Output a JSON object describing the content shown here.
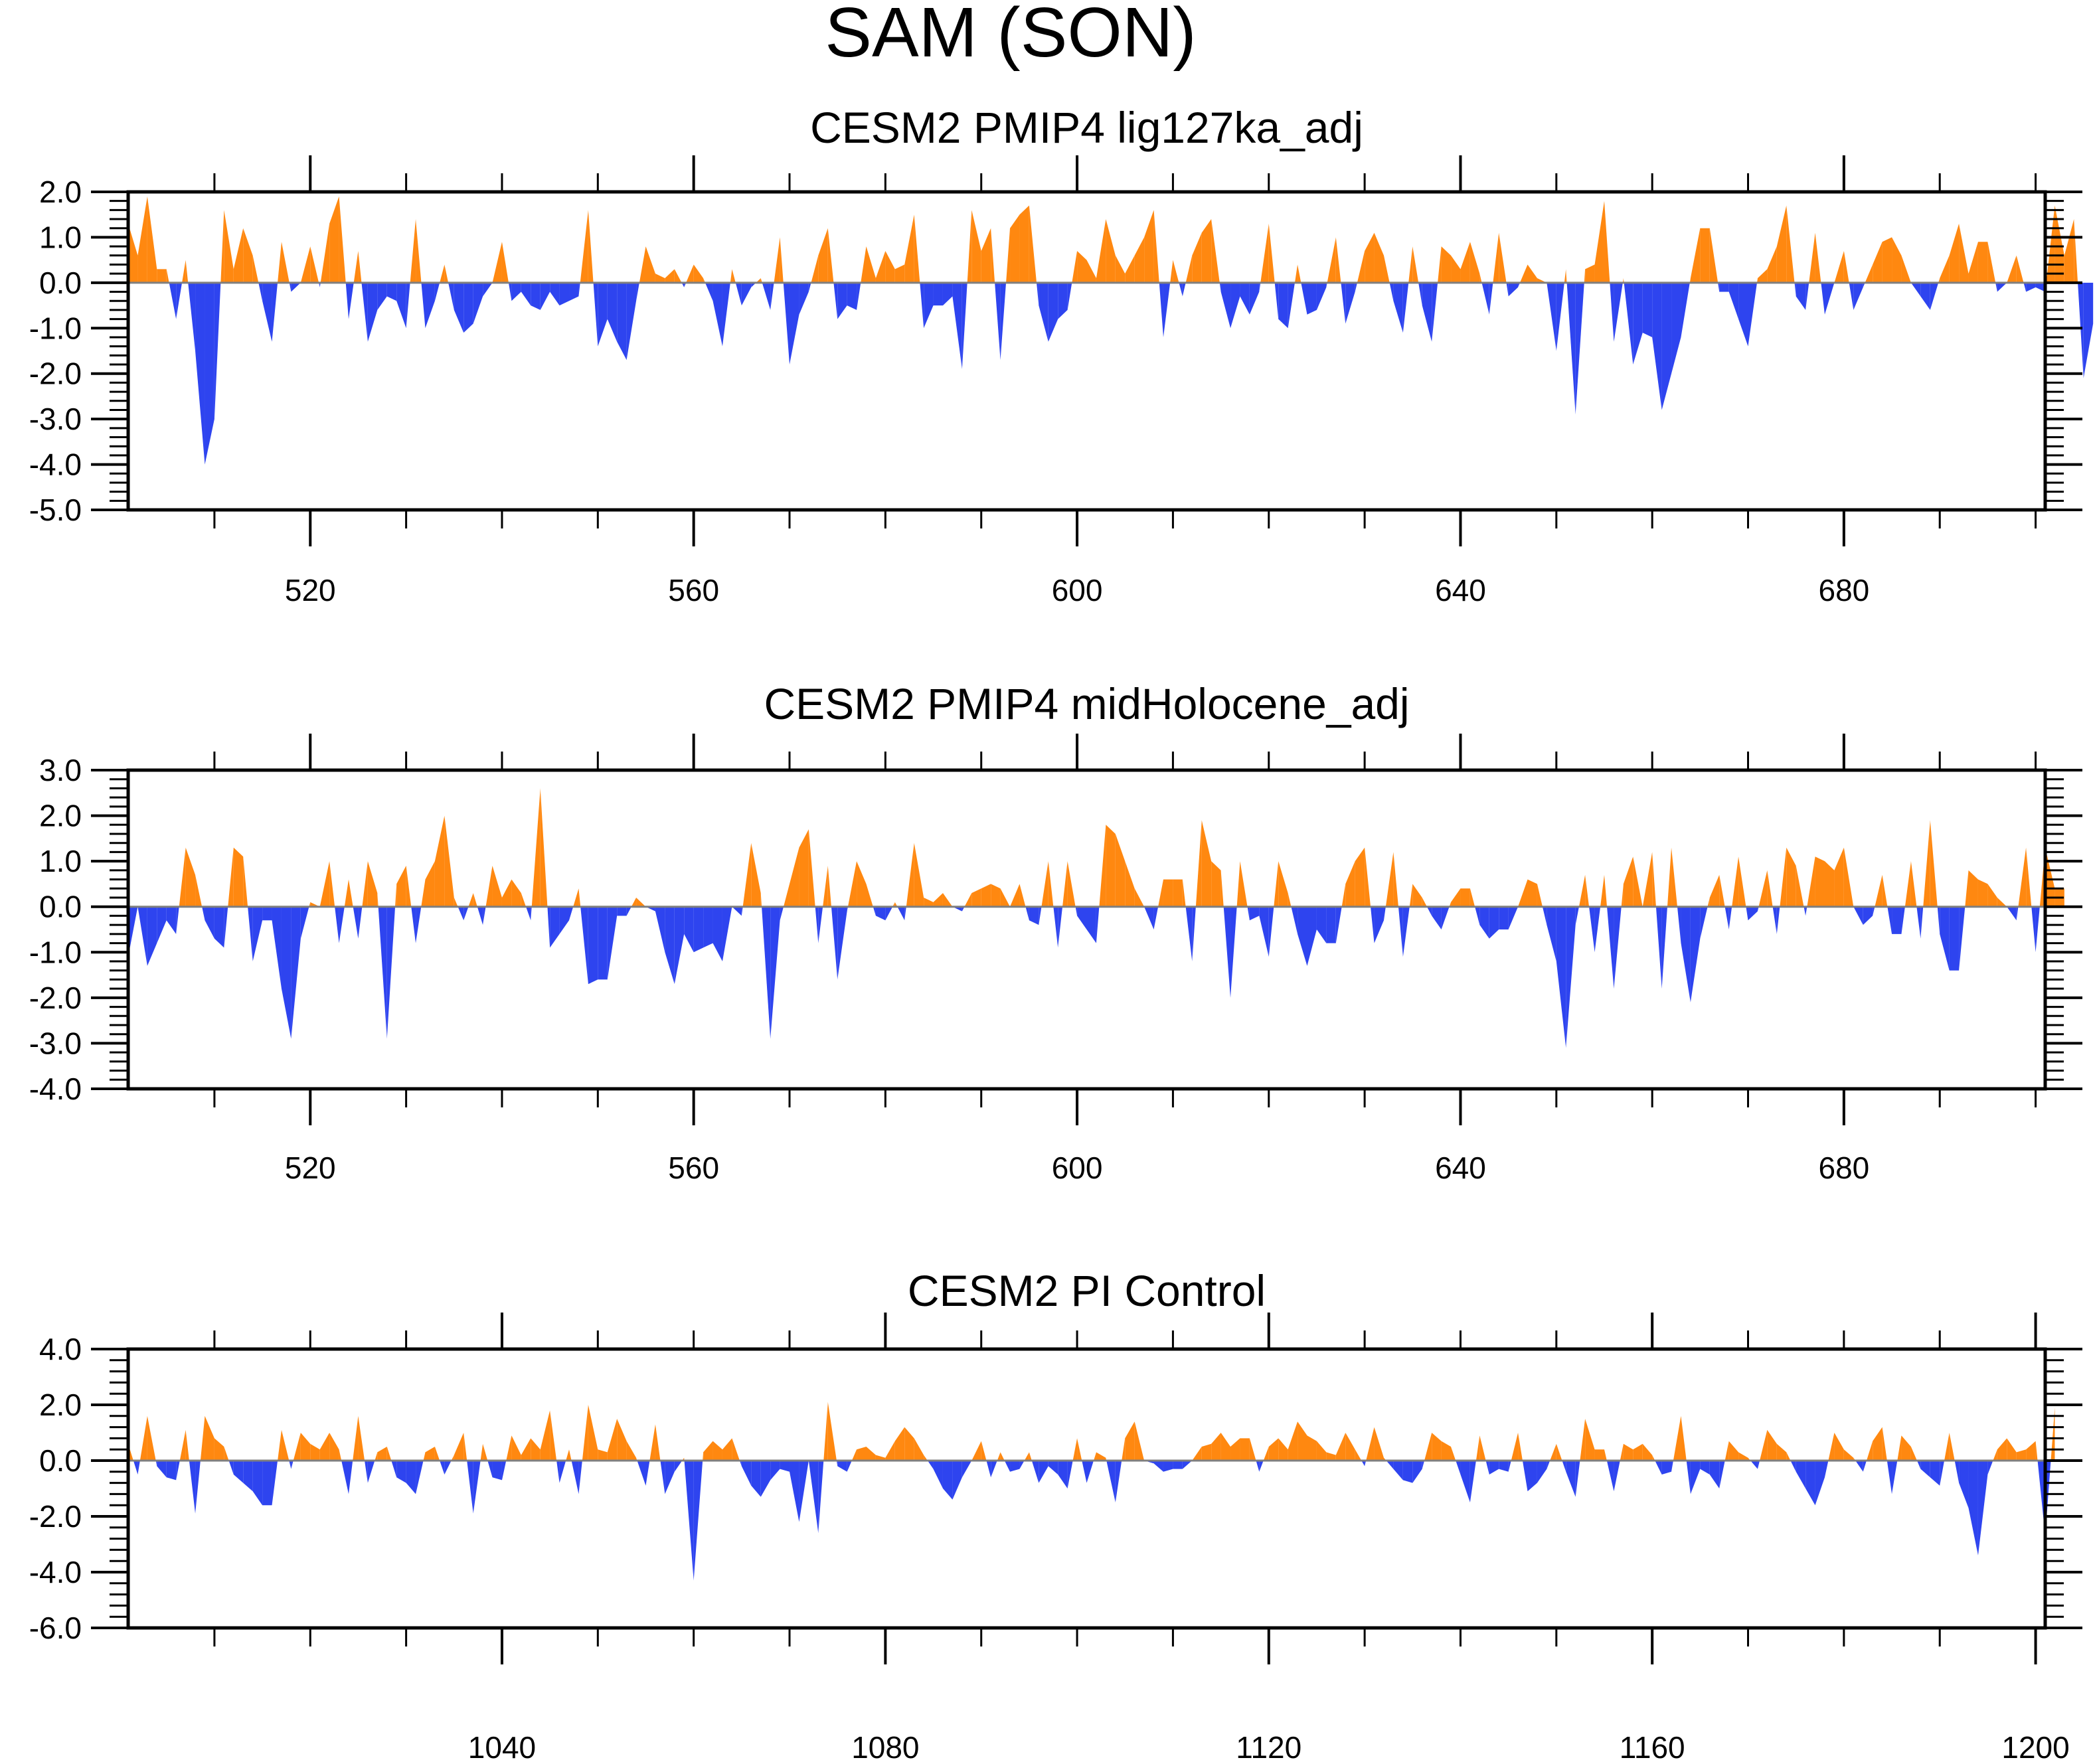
{
  "title": "SAM (SON)",
  "colors": {
    "positive": "#ff8810",
    "negative": "#2e44ef",
    "zero_line": "#7f7f7f"
  },
  "chart_data": [
    {
      "type": "area",
      "title": "CESM2 PMIP4 lig127ka_adj",
      "xlabel": "",
      "ylabel": "",
      "xlim": [
        501,
        701
      ],
      "ylim": [
        -5,
        2
      ],
      "x_ticks": [
        520,
        560,
        600,
        640,
        680
      ],
      "y_ticks": [
        2,
        1,
        0,
        -1,
        -2,
        -3,
        -4,
        -5
      ],
      "y_tick_labels": [
        "2.0",
        "1.0",
        "0.0",
        "-1.0",
        "-2.0",
        "-3.0",
        "-4.0",
        "-5.0"
      ],
      "x_start": 501,
      "values": [
        1.3,
        0.6,
        1.9,
        0.3,
        0.3,
        -0.8,
        0.5,
        -1.5,
        -4.0,
        -3.0,
        1.6,
        0.3,
        1.2,
        0.6,
        -0.4,
        -1.3,
        0.9,
        -0.2,
        0.0,
        0.8,
        -0.1,
        1.3,
        1.9,
        -0.8,
        0.7,
        -1.3,
        -0.6,
        -0.3,
        -0.4,
        -1.0,
        1.4,
        -1.0,
        -0.4,
        0.4,
        -0.6,
        -1.1,
        -0.9,
        -0.3,
        0.0,
        0.9,
        -0.4,
        -0.2,
        -0.5,
        -0.6,
        -0.2,
        -0.5,
        -0.4,
        -0.3,
        1.6,
        -1.4,
        -0.8,
        -1.3,
        -1.7,
        -0.4,
        0.8,
        0.2,
        0.1,
        0.3,
        -0.1,
        0.4,
        0.1,
        -0.4,
        -1.4,
        0.3,
        -0.5,
        -0.1,
        0.1,
        -0.6,
        1.0,
        -1.8,
        -0.7,
        -0.2,
        0.6,
        1.2,
        -0.8,
        -0.5,
        -0.6,
        0.8,
        0.1,
        0.7,
        0.3,
        0.4,
        1.5,
        -1.0,
        -0.5,
        -0.5,
        -0.3,
        -1.9,
        1.6,
        0.7,
        1.2,
        -1.7,
        1.2,
        1.5,
        1.7,
        -0.5,
        -1.3,
        -0.8,
        -0.6,
        0.7,
        0.5,
        0.1,
        1.4,
        0.6,
        0.2,
        0.6,
        1.0,
        1.6,
        -1.2,
        0.5,
        -0.3,
        0.6,
        1.1,
        1.4,
        -0.2,
        -1.0,
        -0.3,
        -0.7,
        -0.2,
        1.3,
        -0.8,
        -1.0,
        0.4,
        -0.7,
        -0.6,
        -0.1,
        1.0,
        -0.9,
        -0.2,
        0.7,
        1.1,
        0.6,
        -0.4,
        -1.1,
        0.8,
        -0.5,
        -1.3,
        0.8,
        0.6,
        0.3,
        0.9,
        0.2,
        -0.7,
        1.1,
        -0.3,
        -0.1,
        0.4,
        0.1,
        0.0,
        -1.5,
        0.3,
        -2.9,
        0.3,
        0.4,
        1.8,
        -1.3,
        0.1,
        -1.8,
        -1.1,
        -1.2,
        -2.8,
        -2.0,
        -1.2,
        0.1,
        1.2,
        1.2,
        -0.2,
        -0.2,
        -0.8,
        -1.4,
        0.1,
        0.3,
        0.8,
        1.7,
        -0.3,
        -0.6,
        1.1,
        -0.7,
        0.0,
        0.7,
        -0.6,
        -0.1,
        0.4,
        0.9,
        1.0,
        0.6,
        0.0,
        -0.3,
        -0.6,
        0.1,
        0.6,
        1.3,
        0.2,
        0.9,
        0.9,
        -0.2,
        0.0,
        0.6,
        -0.2,
        -0.1,
        -0.2,
        1.7,
        0.6,
        1.4,
        -2.1,
        -0.9
      ]
    },
    {
      "type": "area",
      "title": "CESM2 PMIP4 midHolocene_adj",
      "xlabel": "",
      "ylabel": "",
      "xlim": [
        501,
        701
      ],
      "ylim": [
        -4,
        3
      ],
      "x_ticks": [
        520,
        560,
        600,
        640,
        680
      ],
      "y_ticks": [
        3,
        2,
        1,
        0,
        -1,
        -2,
        -3,
        -4
      ],
      "y_tick_labels": [
        "3.0",
        "2.0",
        "1.0",
        "0.0",
        "-1.0",
        "-2.0",
        "-3.0",
        "-4.0"
      ],
      "x_start": 501,
      "values": [
        -1.1,
        0.0,
        -1.3,
        -0.8,
        -0.3,
        -0.6,
        1.3,
        0.7,
        -0.3,
        -0.7,
        -0.9,
        1.3,
        1.1,
        -1.2,
        -0.3,
        -0.3,
        -1.8,
        -2.9,
        -0.7,
        0.1,
        0.0,
        1.0,
        -0.8,
        0.6,
        -0.7,
        1.0,
        0.3,
        -2.9,
        0.5,
        0.9,
        -0.8,
        0.6,
        1.0,
        2.0,
        0.2,
        -0.3,
        0.3,
        -0.4,
        0.9,
        0.2,
        0.6,
        0.3,
        -0.3,
        2.6,
        -0.9,
        -0.6,
        -0.3,
        0.4,
        -1.7,
        -1.6,
        -1.6,
        -0.2,
        -0.2,
        0.2,
        0.0,
        -0.1,
        -1.0,
        -1.7,
        -0.6,
        -1.0,
        -0.9,
        -0.8,
        -1.2,
        0.0,
        -0.2,
        1.4,
        0.3,
        -2.9,
        -0.3,
        0.5,
        1.3,
        1.7,
        -0.8,
        0.9,
        -1.6,
        -0.1,
        1.0,
        0.5,
        -0.2,
        -0.3,
        0.1,
        -0.3,
        1.4,
        0.2,
        0.1,
        0.3,
        0.0,
        -0.1,
        0.3,
        0.4,
        0.5,
        0.4,
        0.0,
        0.5,
        -0.3,
        -0.4,
        1.0,
        -0.9,
        1.0,
        -0.2,
        -0.5,
        -0.8,
        1.8,
        1.6,
        1.0,
        0.4,
        0.0,
        -0.5,
        0.6,
        0.6,
        0.6,
        -1.2,
        1.9,
        1.0,
        0.8,
        -2.0,
        1.0,
        -0.3,
        -0.2,
        -1.1,
        1.0,
        0.3,
        -0.6,
        -1.3,
        -0.5,
        -0.8,
        -0.8,
        0.5,
        1.0,
        1.3,
        -0.8,
        -0.3,
        1.2,
        -1.1,
        0.5,
        0.2,
        -0.2,
        -0.5,
        0.1,
        0.4,
        0.4,
        -0.4,
        -0.7,
        -0.5,
        -0.5,
        0.0,
        0.6,
        0.5,
        -0.4,
        -1.2,
        -3.1,
        -0.4,
        0.7,
        -1.0,
        0.7,
        -1.8,
        0.5,
        1.1,
        0.0,
        1.2,
        -1.8,
        1.3,
        -0.8,
        -2.1,
        -0.7,
        0.2,
        0.7,
        -0.5,
        1.1,
        -0.3,
        -0.1,
        0.8,
        -0.6,
        1.3,
        0.9,
        -0.2,
        1.1,
        1.0,
        0.8,
        1.3,
        0.0,
        -0.4,
        -0.2,
        0.7,
        -0.6,
        -0.6,
        1.0,
        -0.7,
        1.9,
        -0.6,
        -1.4,
        -1.4,
        0.8,
        0.6,
        0.5,
        0.2,
        0.0,
        -0.3,
        1.3,
        -1.0,
        1.3,
        0.4,
        0.4
      ]
    },
    {
      "type": "area",
      "title": "CESM2 PI Control",
      "xlabel": "",
      "ylabel": "",
      "xlim": [
        1001,
        1201
      ],
      "ylim": [
        -6,
        4
      ],
      "x_ticks": [
        1040,
        1080,
        1120,
        1160,
        1200
      ],
      "y_ticks": [
        4,
        2,
        0,
        -2,
        -4,
        -6
      ],
      "y_tick_labels": [
        "4.0",
        "2.0",
        "0.0",
        "-2.0",
        "-4.0",
        "-6.0"
      ],
      "x_start": 1001,
      "values": [
        0.6,
        -0.5,
        1.6,
        -0.2,
        -0.6,
        -0.7,
        1.1,
        -1.9,
        1.6,
        0.8,
        0.5,
        -0.5,
        -0.8,
        -1.1,
        -1.6,
        -1.6,
        1.1,
        -0.3,
        1.0,
        0.6,
        0.4,
        1.0,
        0.4,
        -1.2,
        1.6,
        -0.8,
        0.3,
        0.5,
        -0.6,
        -0.8,
        -1.2,
        0.3,
        0.5,
        -0.5,
        0.2,
        1.0,
        -1.9,
        0.6,
        -0.6,
        -0.7,
        0.9,
        0.2,
        0.8,
        0.4,
        1.8,
        -0.8,
        0.4,
        -1.2,
        2.0,
        0.4,
        0.3,
        1.5,
        0.7,
        0.1,
        -0.9,
        1.3,
        -1.2,
        -0.4,
        0.1,
        -4.3,
        0.3,
        0.7,
        0.4,
        0.8,
        -0.2,
        -0.9,
        -1.3,
        -0.7,
        -0.3,
        -0.4,
        -2.2,
        0.0,
        -2.6,
        2.1,
        -0.2,
        -0.4,
        0.4,
        0.5,
        0.2,
        0.1,
        0.7,
        1.2,
        0.8,
        0.2,
        -0.3,
        -1.0,
        -1.4,
        -0.6,
        0.0,
        0.7,
        -0.6,
        0.3,
        -0.4,
        -0.3,
        0.3,
        -0.8,
        -0.2,
        -0.5,
        -1.0,
        0.8,
        -0.8,
        0.3,
        0.1,
        -1.5,
        0.8,
        1.4,
        0.0,
        -0.1,
        -0.4,
        -0.3,
        -0.3,
        0.0,
        0.5,
        0.6,
        1.0,
        0.5,
        0.8,
        0.8,
        -0.4,
        0.5,
        0.8,
        0.4,
        1.4,
        0.9,
        0.7,
        0.3,
        0.2,
        1.0,
        0.4,
        -0.2,
        1.2,
        0.1,
        -0.3,
        -0.7,
        -0.8,
        -0.3,
        1.0,
        0.7,
        0.5,
        -0.5,
        -1.5,
        0.9,
        -0.5,
        -0.3,
        -0.4,
        1.0,
        -1.1,
        -0.8,
        -0.3,
        0.6,
        -0.4,
        -1.3,
        1.5,
        0.4,
        0.4,
        -1.1,
        0.6,
        0.4,
        0.6,
        0.2,
        -0.5,
        -0.4,
        1.6,
        -1.2,
        -0.3,
        -0.5,
        -1.0,
        0.7,
        0.3,
        0.1,
        -0.3,
        1.1,
        0.6,
        0.3,
        -0.4,
        -1.0,
        -1.6,
        -0.6,
        1.0,
        0.4,
        0.1,
        -0.4,
        0.7,
        1.2,
        -1.2,
        0.9,
        0.5,
        -0.3,
        -0.6,
        -0.9,
        1.0,
        -0.8,
        -1.7,
        -3.4,
        -0.5,
        0.4,
        0.8,
        0.3,
        0.4,
        0.7,
        -2.7,
        1.9
      ]
    }
  ]
}
